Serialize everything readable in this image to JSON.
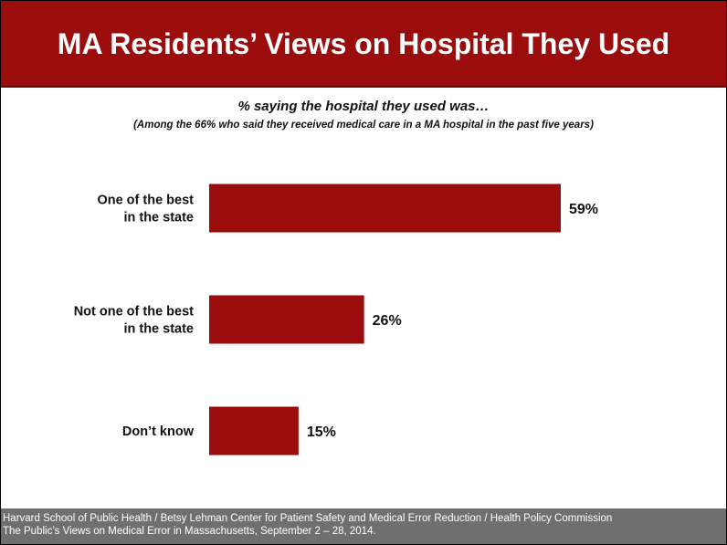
{
  "header": {
    "title": "MA Residents’ Views on Hospital They Used"
  },
  "subtitle": "% saying the hospital they used was…",
  "note": "(Among the 66% who said they received medical care in a MA hospital in the past five years)",
  "chart_data": {
    "type": "bar",
    "orientation": "horizontal",
    "categories": [
      [
        "One of the best",
        "in the state"
      ],
      [
        "Not one of the best",
        "in the state"
      ],
      [
        "Don’t know"
      ]
    ],
    "values": [
      59,
      26,
      15
    ],
    "value_labels": [
      "59%",
      "26%",
      "15%"
    ],
    "xlim": [
      0,
      100
    ],
    "grid": false,
    "legend": "none",
    "bar_color": "#9b0c0c"
  },
  "footer": {
    "line1": "Harvard School of Public Health / Betsy Lehman Center for Patient Safety and Medical Error Reduction / Health Policy Commission",
    "line2": "The Public’s Views on Medical Error in Massachusetts, September 2 – 28, 2014."
  },
  "colors": {
    "header_bg": "#9b0c0c",
    "bar": "#9b0c0c",
    "footer_bg": "#6f6f6f"
  }
}
